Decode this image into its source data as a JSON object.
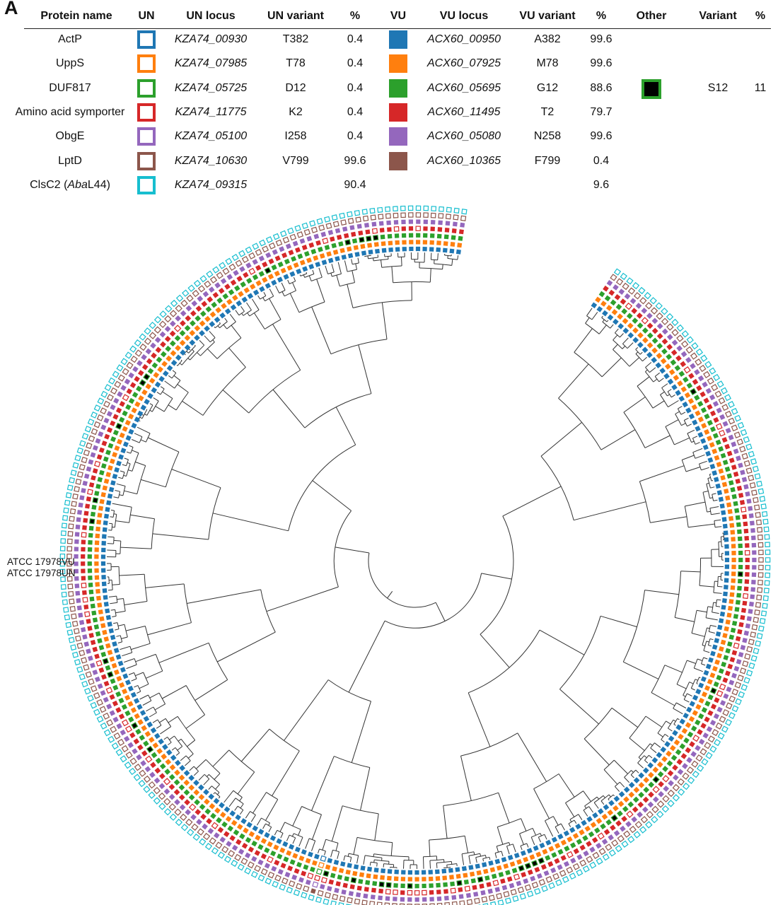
{
  "panel_letter": "A",
  "legend": {
    "headers": {
      "protein_name": "Protein name",
      "un": "UN",
      "un_locus": "UN locus",
      "un_variant": "UN variant",
      "un_pct": "%",
      "vu": "VU",
      "vu_locus": "VU locus",
      "vu_variant": "VU variant",
      "vu_pct": "%",
      "other": "Other",
      "variant": "Variant",
      "other_pct": "%"
    },
    "rows": [
      {
        "protein_pre": "ActP",
        "protein_ital": "",
        "protein_post": "",
        "color": "#1f77b4",
        "un_locus": "KZA74_00930",
        "un_variant": "T382",
        "un_pct": "0.4",
        "vu_locus": "ACX60_00950",
        "vu_variant": "A382",
        "vu_pct": "99.6",
        "other_variant": "",
        "other_pct": ""
      },
      {
        "protein_pre": "UppS",
        "protein_ital": "",
        "protein_post": "",
        "color": "#ff7f0e",
        "un_locus": "KZA74_07985",
        "un_variant": "T78",
        "un_pct": "0.4",
        "vu_locus": "ACX60_07925",
        "vu_variant": "M78",
        "vu_pct": "99.6",
        "other_variant": "",
        "other_pct": ""
      },
      {
        "protein_pre": "DUF817",
        "protein_ital": "",
        "protein_post": "",
        "color": "#2ca02c",
        "un_locus": "KZA74_05725",
        "un_variant": "D12",
        "un_pct": "0.4",
        "vu_locus": "ACX60_05695",
        "vu_variant": "G12",
        "vu_pct": "88.6",
        "other_variant": "S12",
        "other_pct": "11"
      },
      {
        "protein_pre": "Amino acid symporter",
        "protein_ital": "",
        "protein_post": "",
        "color": "#d62728",
        "un_locus": "KZA74_11775",
        "un_variant": "K2",
        "un_pct": "0.4",
        "vu_locus": "ACX60_11495",
        "vu_variant": "T2",
        "vu_pct": "79.7",
        "other_variant": "",
        "other_pct": ""
      },
      {
        "protein_pre": "ObgE",
        "protein_ital": "",
        "protein_post": "",
        "color": "#9467bd",
        "un_locus": "KZA74_05100",
        "un_variant": "I258",
        "un_pct": "0.4",
        "vu_locus": "ACX60_05080",
        "vu_variant": "N258",
        "vu_pct": "99.6",
        "other_variant": "",
        "other_pct": ""
      },
      {
        "protein_pre": "LptD",
        "protein_ital": "",
        "protein_post": "",
        "color": "#8c564b",
        "un_locus": "KZA74_10630",
        "un_variant": "V799",
        "un_pct": "99.6",
        "vu_locus": "ACX60_10365",
        "vu_variant": "F799",
        "vu_pct": "0.4",
        "other_variant": "",
        "other_pct": ""
      },
      {
        "protein_pre": "ClsC2 (",
        "protein_ital": "Aba",
        "protein_post": "L44)",
        "color": "#17becf",
        "un_locus": "KZA74_09315",
        "un_variant": "",
        "un_pct": "90.4",
        "vu_locus": "",
        "vu_variant": "",
        "vu_pct": "9.6",
        "other_variant": "",
        "other_pct": ""
      }
    ],
    "other_swatch": {
      "fill": "#000000",
      "border": "#2ca02c"
    }
  },
  "tree": {
    "strain_labels": [
      "ATCC 17978VU",
      "ATCC 17978UN"
    ],
    "ring_colors": [
      "#1f77b4",
      "#ff7f0e",
      "#2ca02c",
      "#d62728",
      "#9467bd",
      "#8c564b",
      "#17becf"
    ],
    "other_fill": "#000000",
    "line_color": "#333333"
  }
}
